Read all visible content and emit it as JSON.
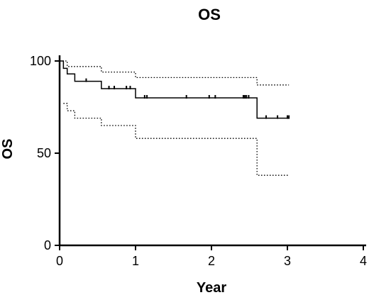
{
  "chart_data": {
    "type": "line",
    "title": "OS",
    "xlabel": "Year",
    "ylabel": "OS",
    "xlim": [
      0,
      4
    ],
    "ylim": [
      0,
      100
    ],
    "x_ticks": [
      0,
      1,
      2,
      3,
      4
    ],
    "y_ticks": [
      0,
      50,
      100
    ],
    "grid": false,
    "legend": "none",
    "colors": {
      "line": "#000000"
    },
    "series": [
      {
        "role": "estimate",
        "style": "solid-step",
        "points": [
          [
            0,
            100
          ],
          [
            0.05,
            100
          ],
          [
            0.05,
            96
          ],
          [
            0.1,
            96
          ],
          [
            0.1,
            93
          ],
          [
            0.2,
            93
          ],
          [
            0.2,
            89
          ],
          [
            0.55,
            89
          ],
          [
            0.55,
            85
          ],
          [
            1.0,
            85
          ],
          [
            1.0,
            80
          ],
          [
            2.6,
            80
          ],
          [
            2.6,
            69
          ],
          [
            3.02,
            69
          ]
        ]
      },
      {
        "role": "upper-ci",
        "style": "dotted-step",
        "points": [
          [
            0,
            100
          ],
          [
            0.1,
            100
          ],
          [
            0.1,
            97
          ],
          [
            0.55,
            97
          ],
          [
            0.55,
            94
          ],
          [
            1.0,
            94
          ],
          [
            1.0,
            91
          ],
          [
            2.6,
            91
          ],
          [
            2.6,
            87
          ],
          [
            3.02,
            87
          ]
        ]
      },
      {
        "role": "lower-ci",
        "style": "dotted-step",
        "points": [
          [
            0.05,
            77
          ],
          [
            0.1,
            77
          ],
          [
            0.1,
            73
          ],
          [
            0.2,
            73
          ],
          [
            0.2,
            69
          ],
          [
            0.55,
            69
          ],
          [
            0.55,
            65
          ],
          [
            1.0,
            65
          ],
          [
            1.0,
            58
          ],
          [
            2.6,
            58
          ],
          [
            2.6,
            38
          ],
          [
            3.02,
            38
          ]
        ]
      }
    ],
    "censored": [
      [
        0.35,
        89
      ],
      [
        0.65,
        85
      ],
      [
        0.72,
        85
      ],
      [
        0.88,
        85
      ],
      [
        0.93,
        85
      ],
      [
        1.12,
        80
      ],
      [
        1.15,
        80
      ],
      [
        1.67,
        80
      ],
      [
        1.97,
        80
      ],
      [
        2.05,
        80
      ],
      [
        2.42,
        80
      ],
      [
        2.44,
        80
      ],
      [
        2.46,
        80
      ],
      [
        2.49,
        80
      ],
      [
        2.72,
        69
      ],
      [
        2.87,
        69
      ],
      [
        3.0,
        69
      ],
      [
        3.02,
        69
      ]
    ]
  }
}
